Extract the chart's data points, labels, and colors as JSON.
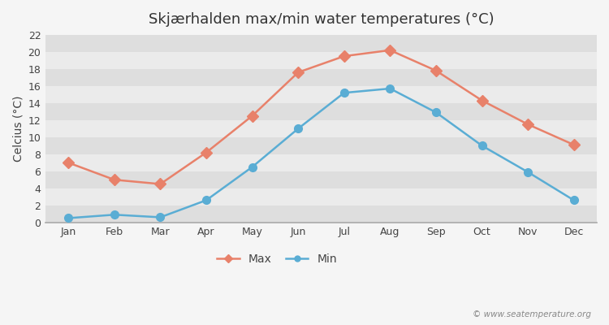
{
  "title": "Skjærhalden max/min water temperatures (°C)",
  "ylabel": "Celcius (°C)",
  "months": [
    "Jan",
    "Feb",
    "Mar",
    "Apr",
    "May",
    "Jun",
    "Jul",
    "Aug",
    "Sep",
    "Oct",
    "Nov",
    "Dec"
  ],
  "max_values": [
    7.0,
    5.0,
    4.5,
    8.2,
    12.5,
    17.6,
    19.5,
    20.2,
    17.8,
    14.3,
    11.5,
    9.1
  ],
  "min_values": [
    0.5,
    0.9,
    0.6,
    2.6,
    6.5,
    11.0,
    15.2,
    15.7,
    12.9,
    9.0,
    5.9,
    2.6
  ],
  "max_color": "#e8816a",
  "min_color": "#5aadd4",
  "fig_bg_color": "#f5f5f5",
  "band_light": "#ebebeb",
  "band_dark": "#dedede",
  "ylim": [
    0,
    22
  ],
  "yticks": [
    0,
    2,
    4,
    6,
    8,
    10,
    12,
    14,
    16,
    18,
    20,
    22
  ],
  "legend_max": "Max",
  "legend_min": "Min",
  "watermark": "© www.seatemperature.org",
  "title_fontsize": 13,
  "label_fontsize": 10,
  "tick_fontsize": 9,
  "max_marker_size": 7,
  "min_marker_size": 7,
  "line_width": 1.8
}
